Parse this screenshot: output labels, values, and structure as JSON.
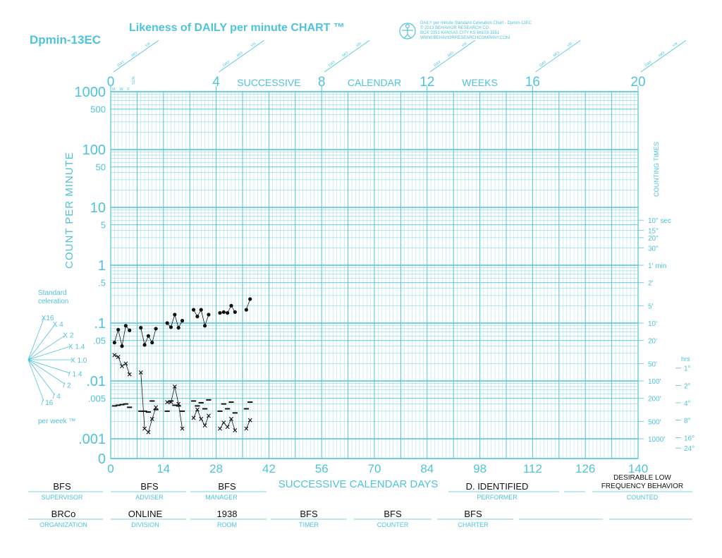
{
  "header": {
    "code": "Dpmin-13EC",
    "title": "Likeness of DAILY per minute CHART ™",
    "publisher_lines": [
      "DAILY per minute Standard Celeration Chart  -  Dpmin-13EC",
      "© 2013 BEHAVIOR RESEARCH CO.",
      "BOX 3351  KANSAS CITY  KS  66103-3351",
      "WWW.BEHAVIORRESEARCHCOMPANY.COM"
    ],
    "date_slot_labels": [
      "DAY",
      "MO",
      "YR"
    ]
  },
  "colors": {
    "grid": "#4fc3d9",
    "data": "#111111",
    "background": "#ffffff"
  },
  "chart_data": {
    "type": "scatter",
    "y_scale": "log",
    "ylim": [
      0.0007,
      1000
    ],
    "xlim": [
      0,
      140
    ],
    "ylabel": "COUNT PER MINUTE",
    "right_label": "COUNTING TIMES",
    "x_bottom_label": "SUCCESSIVE CALENDAR DAYS",
    "x_bottom_ticks": [
      0,
      14,
      28,
      42,
      56,
      70,
      84,
      98,
      112,
      126,
      140
    ],
    "x_bottom_tick_labels": [
      "0",
      "14",
      "28",
      "42",
      "56",
      "70",
      "84",
      "98",
      "112",
      "126",
      "140"
    ],
    "x_top_ticks": [
      {
        "label": "0",
        "week": 0
      },
      {
        "label": "4",
        "week": 4
      },
      {
        "label": "8",
        "week": 8
      },
      {
        "label": "12",
        "week": 12
      },
      {
        "label": "16",
        "week": 16
      },
      {
        "label": "20",
        "week": 20
      }
    ],
    "x_top_words": [
      {
        "label": "SUCCESSIVE",
        "week": 6
      },
      {
        "label": "CALENDAR",
        "week": 10
      },
      {
        "label": "WEEKS",
        "week": 14
      }
    ],
    "day_letters": [
      "M",
      "W",
      "F",
      "SUN"
    ],
    "y_tick_labels": [
      {
        "label": "1000",
        "value": 1000,
        "size": "big"
      },
      {
        "label": "500",
        "value": 500,
        "size": "small"
      },
      {
        "label": "100",
        "value": 100,
        "size": "big"
      },
      {
        "label": "50",
        "value": 50,
        "size": "small"
      },
      {
        "label": "10",
        "value": 10,
        "size": "big"
      },
      {
        "label": "5",
        "value": 5,
        "size": "small"
      },
      {
        "label": "1",
        "value": 1,
        "size": "big"
      },
      {
        "label": ".5",
        "value": 0.5,
        "size": "small"
      },
      {
        "label": ".1",
        "value": 0.1,
        "size": "big"
      },
      {
        "label": ".05",
        "value": 0.05,
        "size": "small"
      },
      {
        "label": ".01",
        "value": 0.01,
        "size": "big"
      },
      {
        "label": ".005",
        "value": 0.005,
        "size": "small"
      },
      {
        "label": ".001",
        "value": 0.001,
        "size": "big"
      },
      {
        "label": "0",
        "value": 0.0007,
        "size": "big"
      }
    ],
    "counting_times": [
      {
        "label": "10\" sec",
        "value": 6
      },
      {
        "label": "15\"",
        "value": 4
      },
      {
        "label": "20\"",
        "value": 3
      },
      {
        "label": "30\"",
        "value": 2
      },
      {
        "label": "1' min",
        "value": 1
      },
      {
        "label": "2'",
        "value": 0.5
      },
      {
        "label": "5'",
        "value": 0.2
      },
      {
        "label": "10'",
        "value": 0.1
      },
      {
        "label": "20'",
        "value": 0.05
      },
      {
        "label": "50'",
        "value": 0.02
      },
      {
        "label": "100'",
        "value": 0.01
      },
      {
        "label": "200'",
        "value": 0.005
      },
      {
        "label": "500'",
        "value": 0.002
      },
      {
        "label": "1000'",
        "value": 0.001
      }
    ],
    "hours_header": "hrs",
    "hours": [
      {
        "label": "1°",
        "value": 0.0167
      },
      {
        "label": "2°",
        "value": 0.0083
      },
      {
        "label": "4°",
        "value": 0.0042
      },
      {
        "label": "8°",
        "value": 0.0021
      },
      {
        "label": "16°",
        "value": 0.00104
      },
      {
        "label": "24°",
        "value": 0.00069
      }
    ],
    "celeration": {
      "title_lines": [
        "Standard",
        "celeration"
      ],
      "footer": "per week ™",
      "fan": [
        {
          "label": "X16",
          "factor": 16
        },
        {
          "label": "X 4",
          "factor": 4
        },
        {
          "label": "X 2",
          "factor": 2
        },
        {
          "label": "X 1.4",
          "factor": 1.4
        },
        {
          "label": "X 1.0",
          "factor": 1
        },
        {
          "label": "/ 1.4",
          "factor": 0.714
        },
        {
          "label": "/ 2",
          "factor": 0.5
        },
        {
          "label": "/ 4",
          "factor": 0.25
        },
        {
          "label": "/ 16",
          "factor": 0.0625
        }
      ]
    },
    "series": [
      {
        "marker": "dot",
        "phases": [
          [
            [
              1,
              0.046
            ],
            [
              2,
              0.077
            ],
            [
              3,
              0.04
            ],
            [
              4,
              0.09
            ],
            [
              5,
              0.075
            ]
          ],
          [
            [
              8,
              0.083
            ],
            [
              9,
              0.042
            ],
            [
              10,
              0.06
            ],
            [
              11,
              0.046
            ],
            [
              12,
              0.08
            ]
          ],
          [
            [
              15,
              0.1
            ],
            [
              16,
              0.085
            ],
            [
              17,
              0.14
            ],
            [
              18,
              0.083
            ],
            [
              19,
              0.11
            ]
          ],
          [
            [
              22,
              0.17
            ],
            [
              23,
              0.13
            ],
            [
              24,
              0.17
            ],
            [
              25,
              0.09
            ],
            [
              26,
              0.14
            ]
          ],
          [
            [
              29,
              0.15
            ],
            [
              30,
              0.155
            ],
            [
              31,
              0.15
            ],
            [
              32,
              0.2
            ],
            [
              33,
              0.155
            ]
          ],
          [
            [
              36,
              0.17
            ],
            [
              37,
              0.26
            ]
          ]
        ]
      },
      {
        "marker": "x",
        "phases": [
          [
            [
              1,
              0.028
            ],
            [
              2,
              0.026
            ],
            [
              3,
              0.018
            ],
            [
              4,
              0.02
            ],
            [
              5,
              0.013
            ]
          ],
          [
            [
              8,
              0.014
            ],
            [
              9,
              0.0015
            ],
            [
              10,
              0.0013
            ],
            [
              11,
              0.0022
            ],
            [
              12,
              0.0035
            ]
          ],
          [
            [
              15,
              0.0043
            ],
            [
              16,
              0.0043
            ],
            [
              17,
              0.008
            ],
            [
              18,
              0.004
            ],
            [
              19,
              0.0015
            ]
          ],
          [
            [
              22,
              0.0023
            ],
            [
              23,
              0.0032
            ],
            [
              24,
              0.0022
            ],
            [
              25,
              0.0017
            ],
            [
              26,
              0.0025
            ]
          ],
          [
            [
              29,
              0.0015
            ],
            [
              30,
              0.0019
            ],
            [
              31,
              0.0016
            ],
            [
              32,
              0.0022
            ],
            [
              33,
              0.0014
            ]
          ],
          [
            [
              36,
              0.0015
            ],
            [
              37,
              0.0021
            ]
          ]
        ]
      }
    ],
    "record_floors": [
      [
        1,
        0.0037
      ],
      [
        2,
        0.0038
      ],
      [
        3,
        0.0039
      ],
      [
        4,
        0.004
      ],
      [
        5,
        0.0035
      ],
      [
        8,
        0.003
      ],
      [
        9,
        0.003
      ],
      [
        10,
        0.0029
      ],
      [
        11,
        0.0045
      ],
      [
        12,
        0.0032
      ],
      [
        15,
        0.003
      ],
      [
        16,
        0.0045
      ],
      [
        17,
        0.0038
      ],
      [
        18,
        0.0037
      ],
      [
        19,
        0.003
      ],
      [
        22,
        0.0045
      ],
      [
        23,
        0.0037
      ],
      [
        24,
        0.0042
      ],
      [
        25,
        0.0033
      ],
      [
        26,
        0.0047
      ],
      [
        29,
        0.003
      ],
      [
        30,
        0.004
      ],
      [
        31,
        0.0033
      ],
      [
        32,
        0.0043
      ],
      [
        33,
        0.0028
      ],
      [
        36,
        0.0033
      ],
      [
        37,
        0.0043
      ]
    ]
  },
  "footer": {
    "row1": [
      {
        "value": "BFS",
        "caption": "SUPERVISOR"
      },
      {
        "value": "BFS",
        "caption": "ADVISER"
      },
      {
        "value": "BFS",
        "caption": "MANAGER"
      },
      {
        "value": "D. IDENTIFIED",
        "caption": "PERFORMER"
      },
      {
        "value": "DESIRABLE LOW FREQUENCY BEHAVIOR",
        "caption": "COUNTED"
      }
    ],
    "row2": [
      {
        "value": "BRCo",
        "caption": "ORGANIZATION"
      },
      {
        "value": "ONLINE",
        "caption": "DIVISION"
      },
      {
        "value": "1938",
        "caption": "ROOM"
      },
      {
        "value": "BFS",
        "caption": "TIMER"
      },
      {
        "value": "BFS",
        "caption": "COUNTER"
      },
      {
        "value": "BFS",
        "caption": "CHARTER"
      }
    ]
  }
}
